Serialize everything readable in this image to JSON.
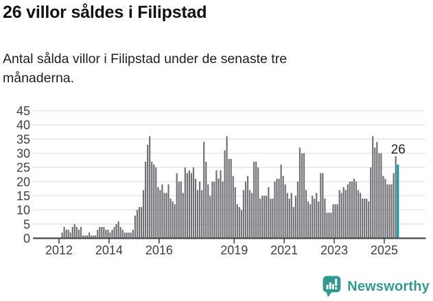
{
  "header": {
    "title": "26 villor såldes i Filipstad",
    "subtitle": "Antal sålda villor i Filipstad under de senaste tre månaderna."
  },
  "chart_data": {
    "type": "bar",
    "title": "26 villor såldes i Filipstad",
    "subtitle": "Antal sålda villor i Filipstad under de senaste tre månaderna.",
    "x_start": {
      "year": 2012,
      "month": 1
    },
    "frequency": "monthly",
    "values": [
      0,
      2,
      4,
      3,
      3,
      2,
      4,
      5,
      4,
      3,
      4,
      1,
      1,
      1,
      2,
      1,
      1,
      1,
      3,
      4,
      4,
      4,
      3,
      3,
      2,
      3,
      4,
      5,
      6,
      4,
      3,
      2,
      2,
      2,
      2,
      3,
      8,
      10,
      11,
      11,
      17,
      27,
      33,
      36,
      27,
      26,
      25,
      18,
      17,
      19,
      16,
      16,
      19,
      14,
      13,
      12,
      23,
      20,
      20,
      16,
      25,
      23,
      24,
      23,
      25,
      21,
      17,
      20,
      17,
      34,
      27,
      19,
      15,
      20,
      20,
      24,
      21,
      24,
      20,
      31,
      36,
      28,
      28,
      22,
      18,
      12,
      11,
      10,
      17,
      20,
      22,
      17,
      16,
      27,
      27,
      25,
      14,
      15,
      15,
      15,
      18,
      14,
      14,
      20,
      21,
      21,
      26,
      22,
      19,
      16,
      14,
      16,
      11,
      15,
      20,
      32,
      30,
      30,
      17,
      13,
      12,
      15,
      14,
      16,
      13,
      23,
      23,
      14,
      9,
      9,
      9,
      12,
      12,
      12,
      17,
      16,
      18,
      17,
      19,
      20,
      20,
      21,
      20,
      17,
      16,
      14,
      14,
      14,
      13,
      25,
      36,
      32,
      34,
      30,
      30,
      22,
      21,
      19,
      19,
      19,
      23,
      29,
      26
    ],
    "highlight_last": true,
    "annotation": {
      "text": "26",
      "value": 26
    },
    "ylim": [
      0,
      45
    ],
    "y_ticks": [
      0,
      5,
      10,
      15,
      20,
      25,
      30,
      35,
      40,
      45
    ],
    "x_ticks": [
      {
        "label": "2012",
        "year": 2012
      },
      {
        "label": "2014",
        "year": 2014
      },
      {
        "label": "2016",
        "year": 2016
      },
      {
        "label": "2019",
        "year": 2019
      },
      {
        "label": "2021",
        "year": 2021
      },
      {
        "label": "2023",
        "year": 2023
      },
      {
        "label": "2025",
        "year": 2025
      }
    ],
    "grid": true,
    "legend": null,
    "colors": {
      "bar": "#6f6e73",
      "highlight": "#0ba0a8",
      "grid": "#e8e8e8",
      "axis": "#47474a",
      "tick_text": "#3d3e42",
      "annotation_text": "#222327"
    }
  },
  "footer": {
    "brand": "Newsworthy",
    "brand_color": "#31998f",
    "logo_icon": "bar-chart-speech-bubble"
  }
}
